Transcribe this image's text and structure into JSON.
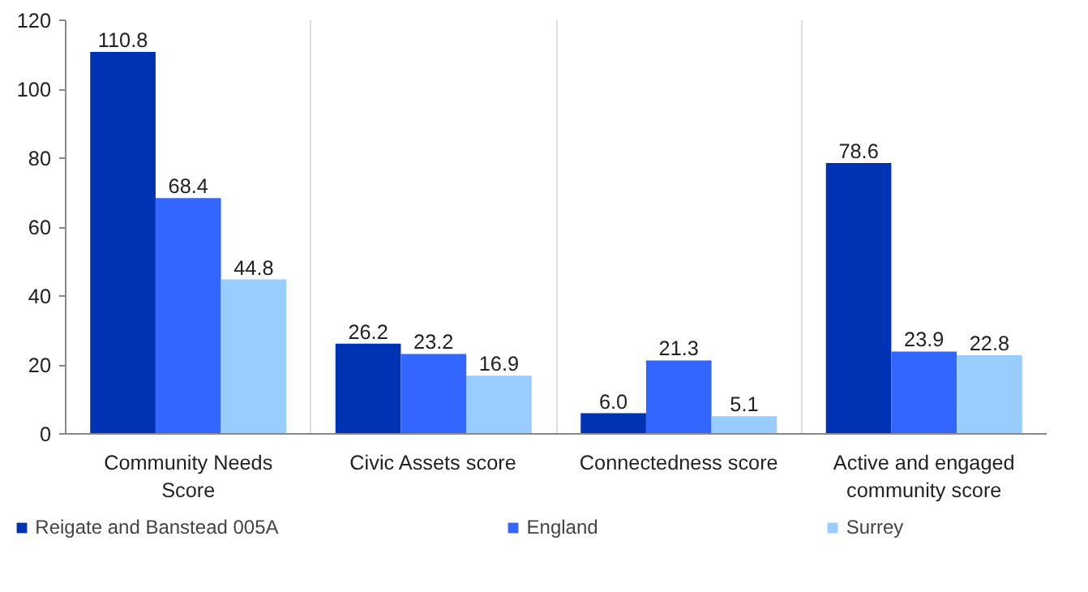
{
  "chart_data": {
    "type": "bar",
    "categories": [
      "Community Needs Score",
      "Civic Assets score",
      "Connectedness score",
      "Active and engaged community score"
    ],
    "series": [
      {
        "name": "Reigate and Banstead 005A",
        "color": "#0033b3",
        "values": [
          110.8,
          26.2,
          6.0,
          78.6
        ],
        "value_labels": [
          "110.8",
          "26.2",
          "6.0",
          "78.6"
        ]
      },
      {
        "name": "England",
        "color": "#3366ff",
        "values": [
          68.4,
          23.2,
          21.3,
          23.9
        ],
        "value_labels": [
          "68.4",
          "23.2",
          "21.3",
          "23.9"
        ]
      },
      {
        "name": "Surrey",
        "color": "#99ccff",
        "values": [
          44.8,
          16.9,
          5.1,
          22.8
        ],
        "value_labels": [
          "44.8",
          "16.9",
          "5.1",
          "22.8"
        ]
      }
    ],
    "ylim": [
      0,
      120
    ],
    "yticks": [
      0,
      20,
      40,
      60,
      80,
      100,
      120
    ],
    "grid": "x",
    "legend": "bottom"
  }
}
